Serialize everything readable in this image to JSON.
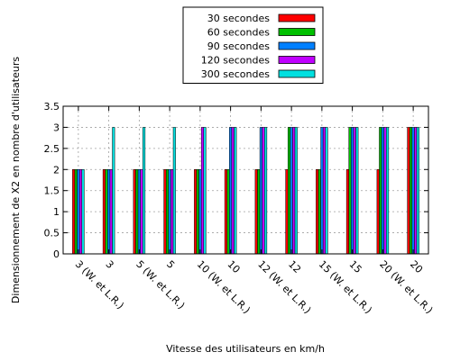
{
  "chart_data": {
    "type": "bar",
    "title": "",
    "xlabel": "Vitesse des utilisateurs en km/h",
    "ylabel": "Dimensionnement de X2 en nombre d'utilisateurs",
    "ylim": [
      0,
      3.5
    ],
    "yticks": [
      "0",
      "0.5",
      "1",
      "1.5",
      "2",
      "2.5",
      "3",
      "3.5"
    ],
    "grid": true,
    "legend_position": "top-center",
    "categories": [
      "3 (W. et L.R.)",
      "3",
      "5 (W. et L.R.)",
      "5",
      "10 (W. et L.R.)",
      "10",
      "12 (W. et L.R.)",
      "12",
      "15 (W. et L.R.)",
      "15",
      "20 (W. et L.R.)",
      "20"
    ],
    "series": [
      {
        "name": "30 secondes",
        "color": "#ff0000",
        "values": [
          2,
          2,
          2,
          2,
          2,
          2,
          2,
          2,
          2,
          2,
          2,
          3
        ]
      },
      {
        "name": "60 secondes",
        "color": "#00c000",
        "values": [
          2,
          2,
          2,
          2,
          2,
          2,
          2,
          3,
          2,
          3,
          3,
          3
        ]
      },
      {
        "name": "90 secondes",
        "color": "#0080ff",
        "values": [
          2,
          2,
          2,
          2,
          2,
          3,
          3,
          3,
          3,
          3,
          3,
          3
        ]
      },
      {
        "name": "120 secondes",
        "color": "#c000ff",
        "values": [
          2,
          2,
          2,
          2,
          3,
          3,
          3,
          3,
          3,
          3,
          3,
          3
        ]
      },
      {
        "name": "300 secondes",
        "color": "#00e0e0",
        "values": [
          2,
          3,
          3,
          3,
          3,
          3,
          3,
          3,
          3,
          3,
          3,
          3
        ]
      }
    ]
  }
}
